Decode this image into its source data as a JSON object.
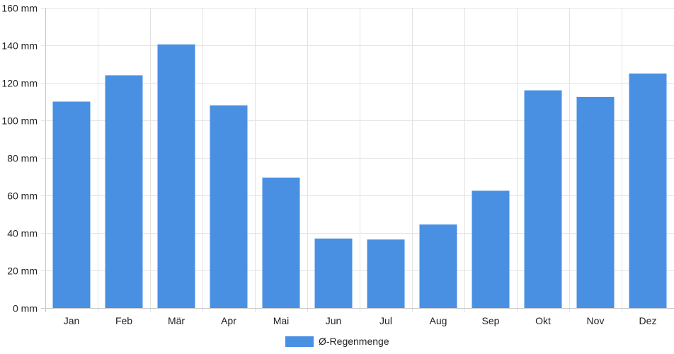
{
  "chart_data": {
    "type": "bar",
    "categories": [
      "Jan",
      "Feb",
      "Mär",
      "Apr",
      "Mai",
      "Jun",
      "Jul",
      "Aug",
      "Sep",
      "Okt",
      "Nov",
      "Dez"
    ],
    "series": [
      {
        "name": "Ø-Regenmenge",
        "values": [
          110,
          124,
          140.5,
          108,
          69.5,
          37,
          36.5,
          44.5,
          62.5,
          116,
          112.5,
          125
        ],
        "color": "#4a90e2"
      }
    ],
    "unit": "mm",
    "y_ticks": [
      0,
      20,
      40,
      60,
      80,
      100,
      120,
      140,
      160
    ],
    "ylim": [
      0,
      160
    ],
    "grid": true,
    "legend_position": "bottom-center"
  }
}
